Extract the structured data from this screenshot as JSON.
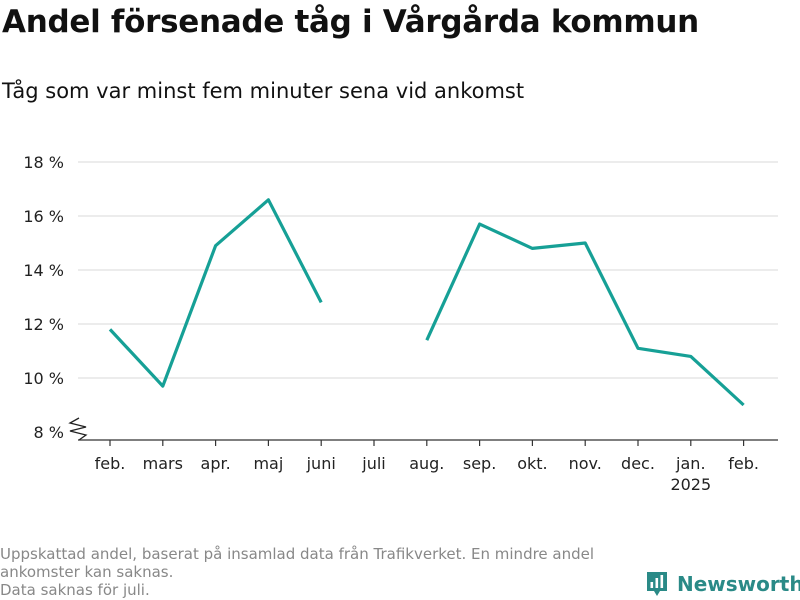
{
  "header": {
    "title": "Andel försenade tåg i Vårgårda kommun",
    "subtitle": "Tåg som var minst fem minuter sena vid ankomst"
  },
  "footnote": {
    "lines": [
      "Uppskattad andel, baserat på insamlad data från Trafikverket. En mindre andel ankomster kan saknas.",
      "Data saknas för juli."
    ]
  },
  "brand": {
    "name": "Newsworthy",
    "color": "#2a8a87",
    "icon": "bar-chart-logo-icon"
  },
  "chart_data": {
    "type": "line",
    "categories": [
      "feb.",
      "mars",
      "apr.",
      "maj",
      "juni",
      "juli",
      "aug.",
      "sep.",
      "okt.",
      "nov.",
      "dec.",
      "jan.",
      "feb."
    ],
    "category_sublabels": [
      "",
      "",
      "",
      "",
      "",
      "",
      "",
      "",
      "",
      "",
      "",
      "2025",
      ""
    ],
    "series": [
      {
        "values": [
          11.8,
          9.7,
          14.9,
          16.6,
          12.8,
          null,
          11.4,
          15.7,
          14.8,
          15.0,
          11.1,
          10.8,
          9.0
        ],
        "color": "#16a096"
      }
    ],
    "yticks": [
      8,
      10,
      12,
      14,
      16,
      18
    ],
    "ytick_labels": [
      "8 %",
      "10 %",
      "12 %",
      "14 %",
      "16 %",
      "18 %"
    ],
    "ylim": [
      8,
      18
    ],
    "axis_break": true,
    "grid": true,
    "xlabel": "",
    "ylabel": ""
  }
}
